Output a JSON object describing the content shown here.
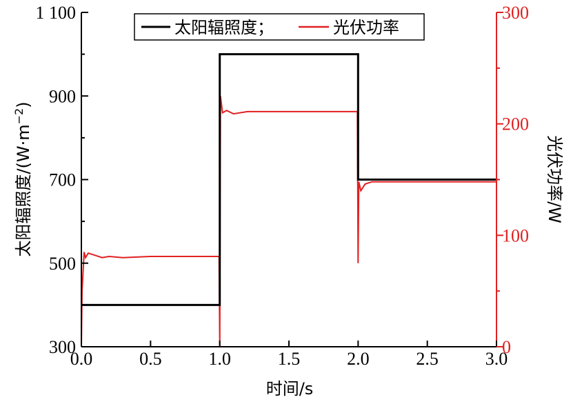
{
  "chart_data": {
    "type": "line",
    "xlabel": "时间/s",
    "ylabel_left_main": "太阳辐照度/(W·m",
    "ylabel_left_sup": "−2",
    "ylabel_left_end": ")",
    "ylabel_right": "光伏功率/W",
    "xlim": [
      0,
      3
    ],
    "ylim_left": [
      300,
      1100
    ],
    "ylim_right": [
      0,
      300
    ],
    "x_ticks": [
      0,
      0.5,
      1,
      1.5,
      2,
      2.5,
      3
    ],
    "x_tick_labels": [
      "0.0",
      "0.5",
      "1.0",
      "1.5",
      "2.0",
      "2.5",
      "3.0"
    ],
    "y_left_ticks": [
      300,
      500,
      700,
      900,
      1100
    ],
    "y_left_tick_labels": [
      "300",
      "500",
      "700",
      "900",
      "1 100"
    ],
    "y_right_ticks": [
      0,
      100,
      200,
      300
    ],
    "y_right_tick_labels": [
      "0",
      "100",
      "200",
      "300"
    ],
    "right_axis_color": "#e02020",
    "legend_position": "top-center",
    "series": [
      {
        "name": "太阳辐照度；",
        "axis": "left",
        "color": "#000000",
        "x": [
          0,
          1,
          1,
          2,
          2,
          3
        ],
        "y": [
          400,
          400,
          1000,
          1000,
          700,
          700
        ]
      },
      {
        "name": "光伏功率",
        "axis": "right",
        "color": "#e02020",
        "x": [
          0,
          0.005,
          0.02,
          0.03,
          0.05,
          0.1,
          0.15,
          0.2,
          0.3,
          0.5,
          0.7,
          0.9,
          0.995,
          1.0,
          1.005,
          1.02,
          1.05,
          1.1,
          1.2,
          1.4,
          1.6,
          1.8,
          1.995,
          2.0,
          2.005,
          2.02,
          2.05,
          2.1,
          2.2,
          2.4,
          2.6,
          2.8,
          3.0
        ],
        "y": [
          0,
          50,
          85,
          80,
          84,
          82,
          80,
          81,
          80,
          81,
          81,
          81,
          81,
          0,
          225,
          210,
          212,
          209,
          211,
          211,
          211,
          211,
          211,
          75,
          148,
          140,
          146,
          148,
          148,
          148,
          148,
          148,
          148
        ]
      }
    ]
  }
}
